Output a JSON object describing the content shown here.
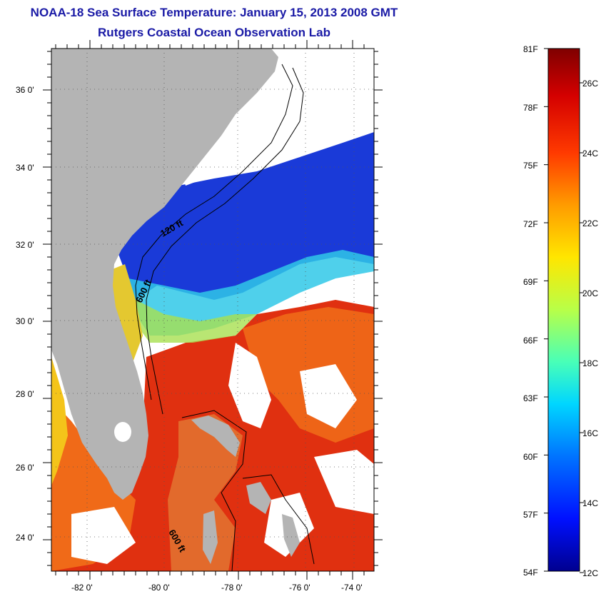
{
  "header": {
    "title_line_1": "NOAA-18 Sea Surface Temperature:  January 15, 2013 2008 GMT",
    "title_line_2": "Rutgers Coastal Ocean Observation Lab"
  },
  "map": {
    "lat_range": [
      23,
      37
    ],
    "lon_range": [
      -83,
      -73
    ],
    "lat_labels": [
      "36 0'",
      "34 0'",
      "32 0'",
      "30 0'",
      "28 0'",
      "26 0'",
      "24 0'"
    ],
    "lon_labels": [
      "-82 0'",
      "-80 0'",
      "-78 0'",
      "-76 0'",
      "-74 0'"
    ],
    "contour_labels": [
      "120 ft",
      "600 ft",
      "600 ft"
    ],
    "land_color": "#b4b4b4",
    "no_data_color": "#ffffff"
  },
  "colorbar": {
    "fahrenheit_labels": [
      "81F",
      "78F",
      "75F",
      "72F",
      "69F",
      "66F",
      "63F",
      "60F",
      "57F",
      "54F"
    ],
    "celsius_labels": [
      "26C",
      "24C",
      "22C",
      "20C",
      "18C",
      "16C",
      "14C",
      "12C"
    ],
    "colors": [
      "#7f0000",
      "#d40000",
      "#ff3a00",
      "#ff9c00",
      "#ffe600",
      "#b8ff48",
      "#48ffb8",
      "#00d6ff",
      "#0074ff",
      "#0010ff",
      "#00008f"
    ]
  }
}
